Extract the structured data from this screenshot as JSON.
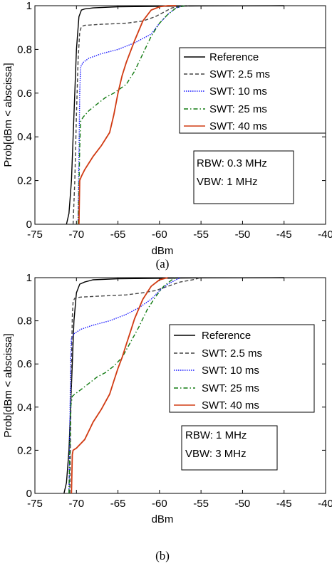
{
  "chart_data": [
    {
      "type": "line",
      "panel": "(a)",
      "xlabel": "dBm",
      "ylabel": "Prob[dBm < abscissa]",
      "xlim": [
        -75,
        -40
      ],
      "ylim": [
        0,
        1
      ],
      "xticks": [
        "-75",
        "-70",
        "-65",
        "-60",
        "-55",
        "-50",
        "-45",
        "-40"
      ],
      "yticks": [
        "0",
        "0.2",
        "0.4",
        "0.6",
        "0.8",
        "1"
      ],
      "legend_position": "right",
      "annotation": [
        "RBW: 0.3 MHz",
        "VBW: 1 MHz"
      ],
      "series": [
        {
          "name": "Reference",
          "color": "#000000",
          "dash": "solid",
          "x": [
            -71.2,
            -70.9,
            -70.6,
            -70.3,
            -70.0,
            -69.7,
            -69.4,
            -69.0,
            -68.0,
            -65.0,
            -60.0,
            -55.0,
            -45.0
          ],
          "y": [
            0.0,
            0.05,
            0.2,
            0.5,
            0.8,
            0.95,
            0.98,
            0.985,
            0.99,
            0.995,
            0.997,
            0.999,
            1.0
          ]
        },
        {
          "name": "SWT: 2.5 ms",
          "color": "#444444",
          "dash": "dashed",
          "x": [
            -70.4,
            -70.2,
            -70.0,
            -69.8,
            -69.6,
            -69.4,
            -69.0,
            -67.0,
            -64.0,
            -62.0,
            -60.5,
            -59.5,
            -58.5,
            -57.5,
            -56.5
          ],
          "y": [
            0.0,
            0.2,
            0.5,
            0.75,
            0.88,
            0.905,
            0.91,
            0.915,
            0.92,
            0.93,
            0.95,
            0.97,
            0.99,
            0.995,
            1.0
          ]
        },
        {
          "name": "SWT: 10 ms",
          "color": "#1a1aff",
          "dash": "dotted",
          "x": [
            -69.8,
            -69.7,
            -69.6,
            -69.5,
            -69.2,
            -68.5,
            -67.0,
            -65.0,
            -63.0,
            -61.0,
            -60.0,
            -59.0,
            -58.0,
            -57.0
          ],
          "y": [
            0.0,
            0.3,
            0.6,
            0.72,
            0.74,
            0.76,
            0.78,
            0.8,
            0.83,
            0.87,
            0.92,
            0.96,
            0.99,
            1.0
          ]
        },
        {
          "name": "SWT: 25 ms",
          "color": "#117a11",
          "dash": "dashdot",
          "x": [
            -69.8,
            -69.7,
            -69.6,
            -69.5,
            -69.2,
            -68.5,
            -67.5,
            -66.5,
            -65.5,
            -64.0,
            -63.0,
            -62.0,
            -61.0,
            -60.0,
            -59.0,
            -58.0,
            -57.0
          ],
          "y": [
            0.0,
            0.15,
            0.35,
            0.47,
            0.49,
            0.52,
            0.55,
            0.58,
            0.6,
            0.64,
            0.7,
            0.78,
            0.86,
            0.92,
            0.96,
            0.99,
            1.0
          ]
        },
        {
          "name": "SWT: 40 ms",
          "color": "#d13b13",
          "dash": "solid",
          "x": [
            -69.7,
            -69.6,
            -69.4,
            -69.0,
            -68.5,
            -68.0,
            -67.0,
            -66.0,
            -65.5,
            -65.0,
            -64.5,
            -64.0,
            -63.0,
            -62.0,
            -61.0,
            -60.0,
            -59.0,
            -58.0
          ],
          "y": [
            0.0,
            0.2,
            0.22,
            0.25,
            0.28,
            0.31,
            0.36,
            0.42,
            0.5,
            0.6,
            0.68,
            0.74,
            0.84,
            0.93,
            0.98,
            0.995,
            1.0,
            1.0
          ]
        }
      ]
    },
    {
      "type": "line",
      "panel": "(b)",
      "xlabel": "dBm",
      "ylabel": "Prob[dBm < abscissa]",
      "xlim": [
        -75,
        -40
      ],
      "ylim": [
        0,
        1
      ],
      "xticks": [
        "-75",
        "-70",
        "-65",
        "-60",
        "-55",
        "-50",
        "-45",
        "-40"
      ],
      "yticks": [
        "0",
        "0.2",
        "0.4",
        "0.6",
        "0.8",
        "1"
      ],
      "legend_position": "right",
      "annotation": [
        "RBW: 1 MHz",
        "VBW: 3 MHz"
      ],
      "series": [
        {
          "name": "Reference",
          "color": "#000000",
          "dash": "solid",
          "x": [
            -71.5,
            -71.2,
            -70.9,
            -70.6,
            -70.3,
            -70.0,
            -69.6,
            -69.0,
            -68.0,
            -65.0,
            -60.0,
            -55.0,
            -45.0
          ],
          "y": [
            0.0,
            0.05,
            0.2,
            0.5,
            0.8,
            0.93,
            0.97,
            0.98,
            0.99,
            0.995,
            0.997,
            0.999,
            1.0
          ]
        },
        {
          "name": "SWT: 2.5 ms",
          "color": "#444444",
          "dash": "dashed",
          "x": [
            -70.8,
            -70.7,
            -70.6,
            -70.5,
            -70.4,
            -70.2,
            -69.5,
            -67.0,
            -64.0,
            -62.0,
            -60.5,
            -59.0,
            -57.5,
            -56.0,
            -55.0
          ],
          "y": [
            0.0,
            0.3,
            0.6,
            0.82,
            0.89,
            0.905,
            0.91,
            0.915,
            0.92,
            0.93,
            0.94,
            0.96,
            0.98,
            0.99,
            1.0
          ]
        },
        {
          "name": "SWT: 10 ms",
          "color": "#1a1aff",
          "dash": "dotted",
          "x": [
            -70.9,
            -70.8,
            -70.7,
            -70.6,
            -70.3,
            -69.5,
            -68.0,
            -66.0,
            -64.0,
            -62.5,
            -61.0,
            -60.0,
            -59.0,
            -58.0,
            -57.5
          ],
          "y": [
            0.0,
            0.3,
            0.6,
            0.72,
            0.74,
            0.76,
            0.78,
            0.8,
            0.83,
            0.86,
            0.9,
            0.94,
            0.97,
            0.99,
            1.0
          ]
        },
        {
          "name": "SWT: 25 ms",
          "color": "#117a11",
          "dash": "dashdot",
          "x": [
            -70.9,
            -70.8,
            -70.7,
            -70.5,
            -70.2,
            -69.5,
            -68.5,
            -67.5,
            -66.5,
            -65.5,
            -64.5,
            -63.5,
            -62.5,
            -61.5,
            -60.5,
            -59.5,
            -58.5,
            -58.0
          ],
          "y": [
            0.0,
            0.2,
            0.4,
            0.45,
            0.46,
            0.48,
            0.51,
            0.54,
            0.56,
            0.59,
            0.63,
            0.7,
            0.77,
            0.85,
            0.91,
            0.96,
            0.99,
            1.0
          ]
        },
        {
          "name": "SWT: 40 ms",
          "color": "#d13b13",
          "dash": "solid",
          "x": [
            -70.6,
            -70.5,
            -70.4,
            -70.0,
            -69.0,
            -68.5,
            -68.0,
            -67.0,
            -66.0,
            -65.5,
            -65.0,
            -64.5,
            -64.0,
            -63.5,
            -63.0,
            -62.0,
            -61.0,
            -60.0,
            -59.0
          ],
          "y": [
            0.0,
            0.18,
            0.2,
            0.21,
            0.25,
            0.29,
            0.33,
            0.39,
            0.46,
            0.52,
            0.58,
            0.63,
            0.69,
            0.75,
            0.81,
            0.9,
            0.96,
            0.99,
            1.0
          ]
        }
      ]
    }
  ]
}
